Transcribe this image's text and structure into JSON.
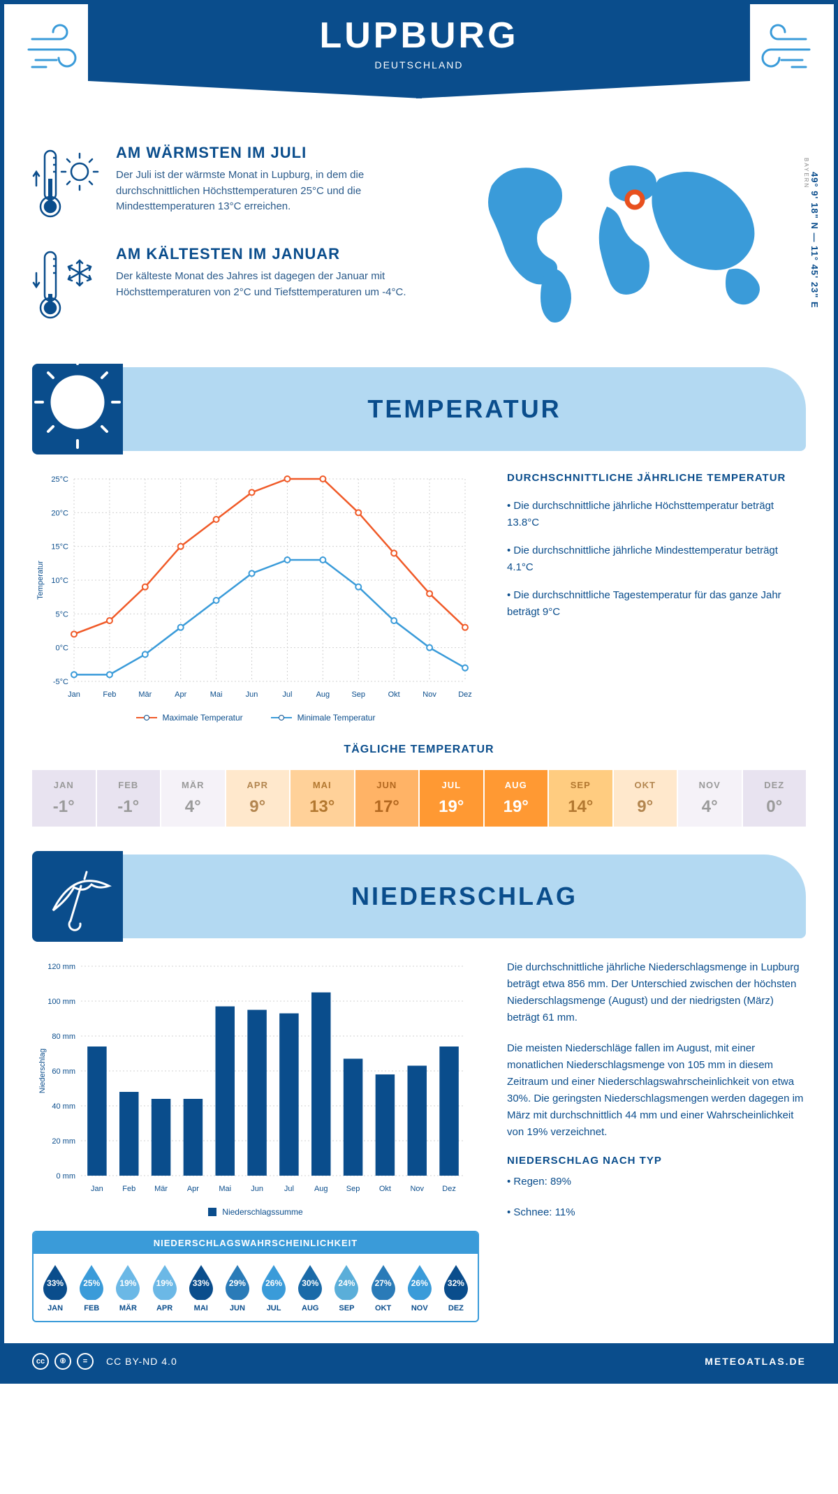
{
  "header": {
    "city": "LUPBURG",
    "country": "DEUTSCHLAND"
  },
  "coords": "49° 9' 18\" N — 11° 45' 23\" E",
  "region": "BAYERN",
  "warmest": {
    "title": "AM WÄRMSTEN IM JULI",
    "text": "Der Juli ist der wärmste Monat in Lupburg, in dem die durchschnittlichen Höchsttemperaturen 25°C und die Mindesttemperaturen 13°C erreichen."
  },
  "coldest": {
    "title": "AM KÄLTESTEN IM JANUAR",
    "text": "Der kälteste Monat des Jahres ist dagegen der Januar mit Höchsttemperaturen von 2°C und Tiefsttemperaturen um -4°C."
  },
  "temperature": {
    "section_title": "TEMPERATUR",
    "chart": {
      "type": "line",
      "months": [
        "Jan",
        "Feb",
        "Mär",
        "Apr",
        "Mai",
        "Jun",
        "Jul",
        "Aug",
        "Sep",
        "Okt",
        "Nov",
        "Dez"
      ],
      "max_series": {
        "label": "Maximale Temperatur",
        "color": "#f05a28",
        "values": [
          2,
          4,
          9,
          15,
          19,
          23,
          25,
          25,
          20,
          14,
          8,
          3
        ]
      },
      "min_series": {
        "label": "Minimale Temperatur",
        "color": "#3a9bd9",
        "values": [
          -4,
          -4,
          -1,
          3,
          7,
          11,
          13,
          13,
          9,
          4,
          0,
          -3
        ]
      },
      "ylabel": "Temperatur",
      "ylim": [
        -5,
        25
      ],
      "yticks": [
        -5,
        0,
        5,
        10,
        15,
        20,
        25
      ],
      "grid_color": "#d0d0d0",
      "line_width": 2.5,
      "marker": "circle"
    },
    "info_title": "DURCHSCHNITTLICHE JÄHRLICHE TEMPERATUR",
    "bullets": [
      "• Die durchschnittliche jährliche Höchsttemperatur beträgt 13.8°C",
      "• Die durchschnittliche jährliche Mindesttemperatur beträgt 4.1°C",
      "• Die durchschnittliche Tagestemperatur für das ganze Jahr beträgt 9°C"
    ],
    "daily_title": "TÄGLICHE TEMPERATUR",
    "daily": {
      "months": [
        "JAN",
        "FEB",
        "MÄR",
        "APR",
        "MAI",
        "JUN",
        "JUL",
        "AUG",
        "SEP",
        "OKT",
        "NOV",
        "DEZ"
      ],
      "values": [
        "-1°",
        "-1°",
        "4°",
        "9°",
        "13°",
        "17°",
        "19°",
        "19°",
        "14°",
        "9°",
        "4°",
        "0°"
      ],
      "bg_colors": [
        "#e8e3f0",
        "#e8e3f0",
        "#f5f2f8",
        "#ffe8cc",
        "#ffd199",
        "#ffb366",
        "#ff9933",
        "#ff9933",
        "#ffcc80",
        "#ffe8cc",
        "#f5f2f8",
        "#e8e3f0"
      ],
      "text_colors": [
        "#9a9a9a",
        "#9a9a9a",
        "#9a9a9a",
        "#b38650",
        "#b37830",
        "#b36820",
        "#ffffff",
        "#ffffff",
        "#b37830",
        "#b38650",
        "#9a9a9a",
        "#9a9a9a"
      ]
    }
  },
  "precipitation": {
    "section_title": "NIEDERSCHLAG",
    "chart": {
      "type": "bar",
      "months": [
        "Jan",
        "Feb",
        "Mär",
        "Apr",
        "Mai",
        "Jun",
        "Jul",
        "Aug",
        "Sep",
        "Okt",
        "Nov",
        "Dez"
      ],
      "values": [
        74,
        48,
        44,
        44,
        97,
        95,
        93,
        105,
        67,
        58,
        63,
        74
      ],
      "bar_color": "#0a4d8c",
      "ylabel": "Niederschlag",
      "legend": "Niederschlagssumme",
      "ylim": [
        0,
        120
      ],
      "yticks": [
        0,
        20,
        40,
        60,
        80,
        100,
        120
      ],
      "ytick_suffix": " mm",
      "grid_color": "#d0d0d0",
      "bar_width": 0.6
    },
    "text1": "Die durchschnittliche jährliche Niederschlagsmenge in Lupburg beträgt etwa 856 mm. Der Unterschied zwischen der höchsten Niederschlagsmenge (August) und der niedrigsten (März) beträgt 61 mm.",
    "text2": "Die meisten Niederschläge fallen im August, mit einer monatlichen Niederschlagsmenge von 105 mm in diesem Zeitraum und einer Niederschlagswahrscheinlichkeit von etwa 30%. Die geringsten Niederschlagsmengen werden dagegen im März mit durchschnittlich 44 mm und einer Wahrscheinlichkeit von 19% verzeichnet.",
    "type_title": "NIEDERSCHLAG NACH TYP",
    "type_bullets": [
      "• Regen: 89%",
      "• Schnee: 11%"
    ],
    "probability": {
      "title": "NIEDERSCHLAGSWAHRSCHEINLICHKEIT",
      "months": [
        "JAN",
        "FEB",
        "MÄR",
        "APR",
        "MAI",
        "JUN",
        "JUL",
        "AUG",
        "SEP",
        "OKT",
        "NOV",
        "DEZ"
      ],
      "values": [
        "33%",
        "25%",
        "19%",
        "19%",
        "33%",
        "29%",
        "26%",
        "30%",
        "24%",
        "27%",
        "26%",
        "32%"
      ],
      "colors": [
        "#0a4d8c",
        "#3a9bd9",
        "#6bb8e6",
        "#6bb8e6",
        "#0a4d8c",
        "#2a7bb8",
        "#3a9bd9",
        "#1a6aa8",
        "#5aaed9",
        "#2a7bb8",
        "#3a9bd9",
        "#0a4d8c"
      ]
    }
  },
  "footer": {
    "license": "CC BY-ND 4.0",
    "site": "METEOATLAS.DE"
  }
}
